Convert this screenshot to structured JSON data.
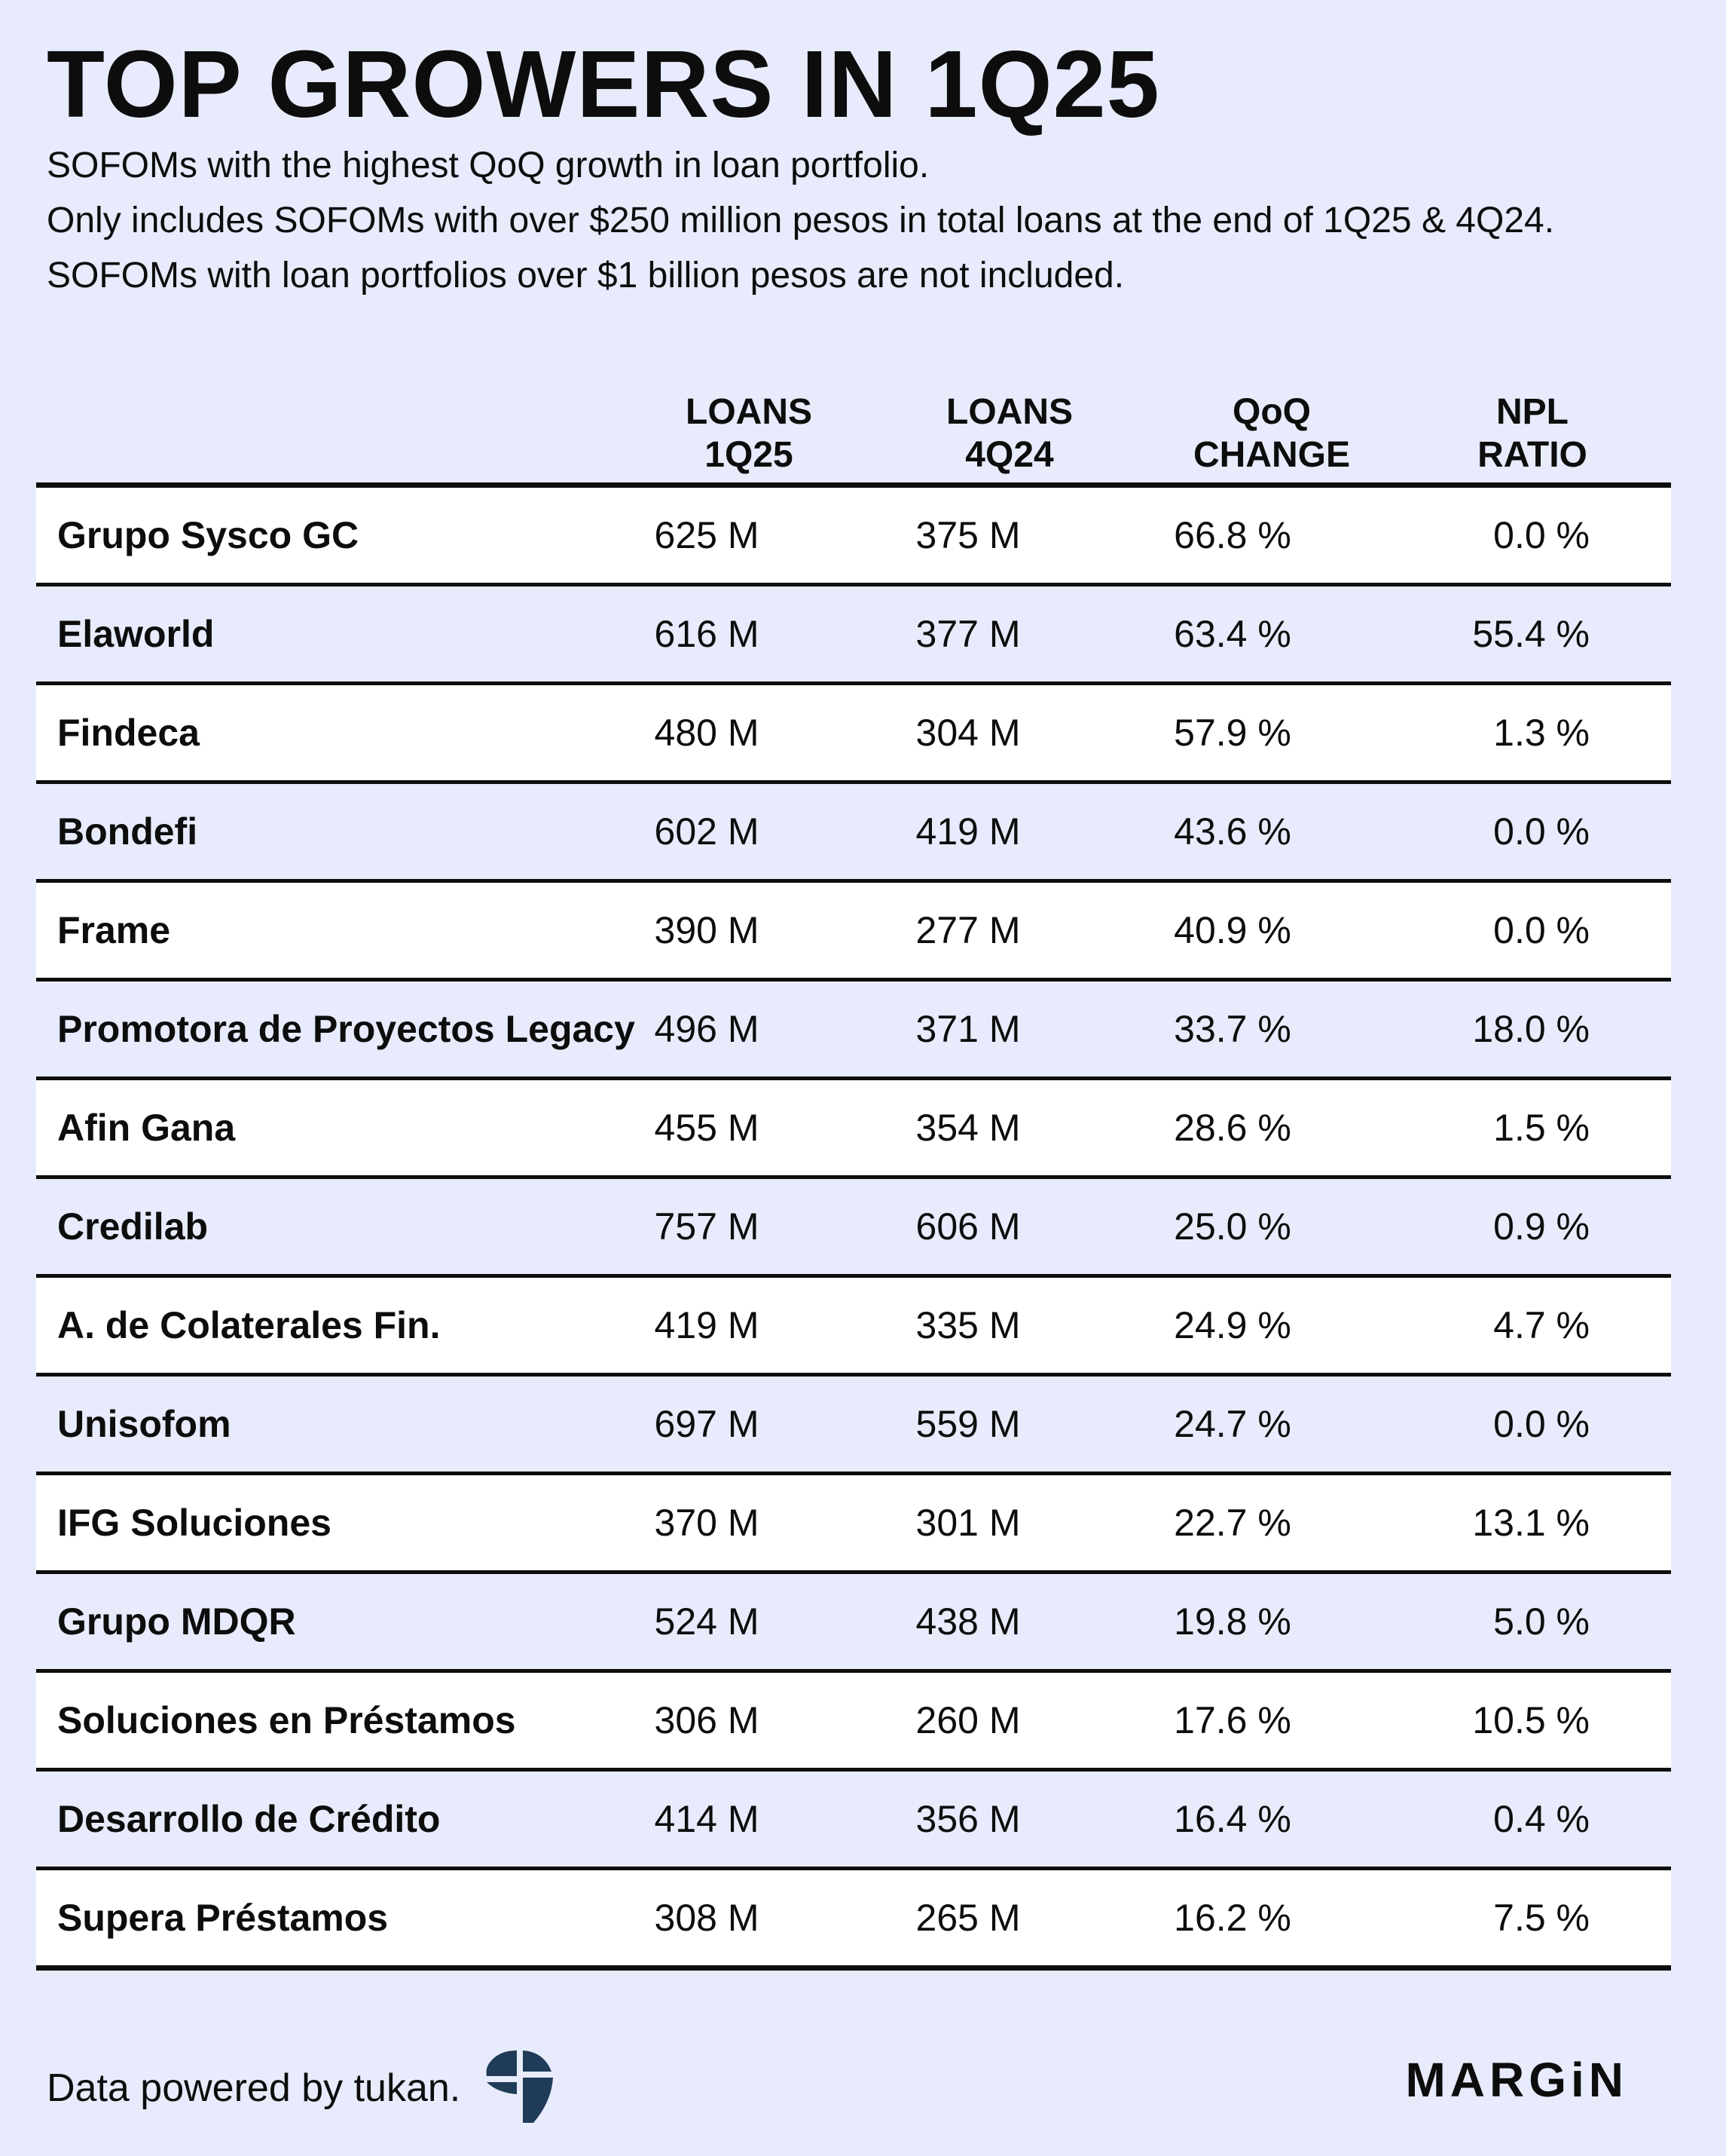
{
  "header": {
    "title": "TOP GROWERS IN 1Q25",
    "subtitle_lines": [
      "SOFOMs with the highest QoQ growth in loan portfolio.",
      "Only includes SOFOMs with over $250 million pesos in total loans at the end of 1Q25 & 4Q24.",
      "SOFOMs with loan portfolios over $1 billion pesos are not included."
    ]
  },
  "chart_data": {
    "type": "table",
    "title": "TOP GROWERS IN 1Q25",
    "columns": [
      {
        "line1": "LOANS",
        "line2": "1Q25"
      },
      {
        "line1": "LOANS",
        "line2": "4Q24"
      },
      {
        "line1": "QoQ",
        "line2": "CHANGE"
      },
      {
        "line1": "NPL",
        "line2": "RATIO"
      }
    ],
    "rows": [
      {
        "name": "Grupo Sysco GC",
        "loans_1q25": "625 M",
        "loans_4q24": "375 M",
        "qoq_change": "66.8 %",
        "npl_ratio": "0.0 %"
      },
      {
        "name": "Elaworld",
        "loans_1q25": "616 M",
        "loans_4q24": "377 M",
        "qoq_change": "63.4 %",
        "npl_ratio": "55.4 %"
      },
      {
        "name": "Findeca",
        "loans_1q25": "480 M",
        "loans_4q24": "304 M",
        "qoq_change": "57.9 %",
        "npl_ratio": "1.3 %"
      },
      {
        "name": "Bondefi",
        "loans_1q25": "602 M",
        "loans_4q24": "419 M",
        "qoq_change": "43.6 %",
        "npl_ratio": "0.0 %"
      },
      {
        "name": "Frame",
        "loans_1q25": "390 M",
        "loans_4q24": "277 M",
        "qoq_change": "40.9 %",
        "npl_ratio": "0.0 %"
      },
      {
        "name": "Promotora de Proyectos Legacy",
        "loans_1q25": "496 M",
        "loans_4q24": "371 M",
        "qoq_change": "33.7 %",
        "npl_ratio": "18.0 %"
      },
      {
        "name": "Afin Gana",
        "loans_1q25": "455 M",
        "loans_4q24": "354 M",
        "qoq_change": "28.6 %",
        "npl_ratio": "1.5 %"
      },
      {
        "name": "Credilab",
        "loans_1q25": "757 M",
        "loans_4q24": "606 M",
        "qoq_change": "25.0 %",
        "npl_ratio": "0.9 %"
      },
      {
        "name": "A. de Colaterales Fin.",
        "loans_1q25": "419 M",
        "loans_4q24": "335 M",
        "qoq_change": "24.9 %",
        "npl_ratio": "4.7 %"
      },
      {
        "name": "Unisofom",
        "loans_1q25": "697 M",
        "loans_4q24": "559 M",
        "qoq_change": "24.7 %",
        "npl_ratio": "0.0 %"
      },
      {
        "name": "IFG Soluciones",
        "loans_1q25": "370 M",
        "loans_4q24": "301 M",
        "qoq_change": "22.7 %",
        "npl_ratio": "13.1 %"
      },
      {
        "name": "Grupo MDQR",
        "loans_1q25": "524 M",
        "loans_4q24": "438 M",
        "qoq_change": "19.8 %",
        "npl_ratio": "5.0 %"
      },
      {
        "name": "Soluciones en Préstamos",
        "loans_1q25": "306 M",
        "loans_4q24": "260 M",
        "qoq_change": "17.6 %",
        "npl_ratio": "10.5 %"
      },
      {
        "name": "Desarrollo de Crédito",
        "loans_1q25": "414 M",
        "loans_4q24": "356 M",
        "qoq_change": "16.4 %",
        "npl_ratio": "0.4 %"
      },
      {
        "name": "Supera Préstamos",
        "loans_1q25": "308 M",
        "loans_4q24": "265 M",
        "qoq_change": "16.2 %",
        "npl_ratio": "7.5 %"
      }
    ]
  },
  "footer": {
    "credit": "Data powered by tukan.",
    "brand": "MARGiN",
    "tukan_icon": "tukan-logo-icon"
  },
  "colors": {
    "background": "#e7ebfb",
    "row_highlight": "#ffffff",
    "text": "#0d0d0d",
    "logo": "#1f3b57"
  }
}
